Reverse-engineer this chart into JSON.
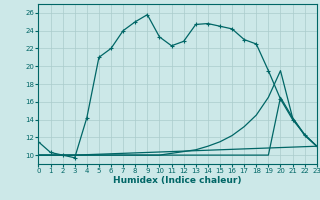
{
  "xlabel": "Humidex (Indice chaleur)",
  "xlim": [
    0,
    23
  ],
  "ylim": [
    9,
    27
  ],
  "yticks": [
    10,
    12,
    14,
    16,
    18,
    20,
    22,
    24,
    26
  ],
  "xticks": [
    0,
    1,
    2,
    3,
    4,
    5,
    6,
    7,
    8,
    9,
    10,
    11,
    12,
    13,
    14,
    15,
    16,
    17,
    18,
    19,
    20,
    21,
    22,
    23
  ],
  "background_color": "#cce8e8",
  "line_color": "#006666",
  "grid_color": "#aacccc",
  "curves": [
    {
      "x": [
        0,
        1,
        2,
        3,
        4,
        5,
        6,
        7,
        8,
        9,
        10,
        11,
        12,
        13,
        14,
        15,
        16,
        17,
        18,
        19,
        20,
        21,
        22,
        23
      ],
      "y": [
        11.5,
        10.3,
        10.0,
        9.7,
        14.2,
        21.0,
        22.0,
        24.0,
        25.0,
        25.8,
        23.3,
        22.3,
        22.8,
        24.7,
        24.8,
        24.5,
        24.2,
        23.0,
        22.5,
        19.5,
        16.3,
        14.0,
        12.3,
        11.0
      ],
      "markers": true
    },
    {
      "x": [
        0,
        3,
        10,
        11,
        12,
        13,
        14,
        15,
        16,
        17,
        18,
        19,
        20,
        21,
        22,
        23
      ],
      "y": [
        10.0,
        10.0,
        10.0,
        10.2,
        10.4,
        10.6,
        11.0,
        11.5,
        12.2,
        13.2,
        14.5,
        16.5,
        19.5,
        14.2,
        12.2,
        11.0
      ],
      "markers": false
    },
    {
      "x": [
        0,
        3,
        19,
        20,
        21,
        22,
        23
      ],
      "y": [
        10.0,
        10.0,
        10.0,
        16.5,
        14.2,
        12.3,
        11.0
      ],
      "markers": false
    },
    {
      "x": [
        0,
        3,
        23
      ],
      "y": [
        10.0,
        10.0,
        11.0
      ],
      "markers": false
    }
  ]
}
